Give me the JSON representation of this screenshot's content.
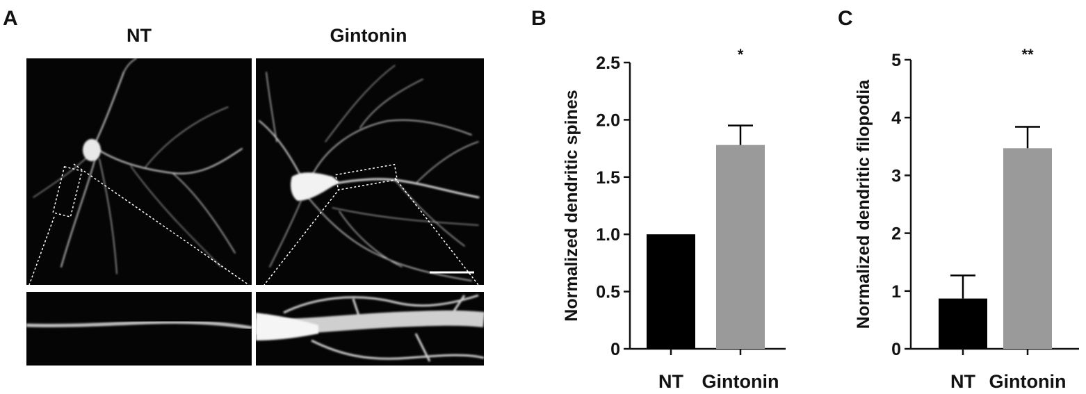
{
  "panels": {
    "a": {
      "letter": "A"
    },
    "b": {
      "letter": "B"
    },
    "c": {
      "letter": "C"
    }
  },
  "micrographs": {
    "left_title": "NT",
    "right_title": "Gintonin"
  },
  "colors": {
    "nt_bar": "#000000",
    "gintonin_bar": "#9a9a9a",
    "image_background": "#050505",
    "neuron_signal": "#e8e8e8"
  },
  "chart_data": [
    {
      "type": "bar",
      "panel": "B",
      "categories": [
        "NT",
        "Gintonin"
      ],
      "values": [
        1.0,
        1.78
      ],
      "errors": [
        0,
        0.17
      ],
      "significance": [
        "",
        "*"
      ],
      "ylabel": "Normalized dendritic spines",
      "ylim": [
        0,
        2.5
      ],
      "yticks": [
        0,
        0.5,
        1.0,
        1.5,
        2.0,
        2.5
      ],
      "ytick_labels": [
        "0",
        "0.5",
        "1.0",
        "1.5",
        "2.0",
        "2.5"
      ],
      "grid": false
    },
    {
      "type": "bar",
      "panel": "C",
      "categories": [
        "NT",
        "Gintonin"
      ],
      "values": [
        0.87,
        3.47
      ],
      "errors": [
        0.4,
        0.37
      ],
      "significance": [
        "",
        "**"
      ],
      "ylabel": "Normalized dendritic filopodia",
      "ylim": [
        0,
        5
      ],
      "yticks": [
        0,
        1,
        2,
        3,
        4,
        5
      ],
      "ytick_labels": [
        "0",
        "1",
        "2",
        "3",
        "4",
        "5"
      ],
      "grid": false
    }
  ]
}
